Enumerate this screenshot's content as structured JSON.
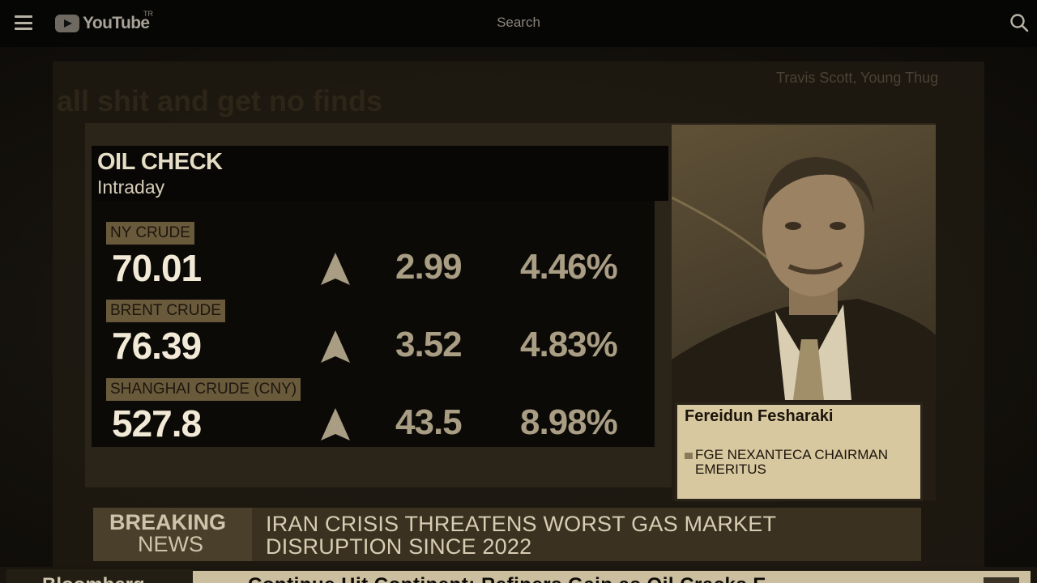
{
  "header": {
    "logo_text": "YouTube",
    "region": "TR",
    "search_label": "Search"
  },
  "background": {
    "song_artists": "Travis Scott, Young Thug",
    "lyric_text": "all shit and get no finds"
  },
  "oil_check": {
    "title": "OIL CHECK",
    "subtitle": "Intraday",
    "rows": [
      {
        "label": "NY CRUDE",
        "price": "70.01",
        "change": "2.99",
        "pct": "4.46%"
      },
      {
        "label": "BRENT CRUDE",
        "price": "76.39",
        "change": "3.52",
        "pct": "4.83%"
      },
      {
        "label": "SHANGHAI CRUDE (CNY)",
        "price": "527.8",
        "change": "43.5",
        "pct": "8.98%"
      }
    ]
  },
  "guest": {
    "name": "Fereidun Fesharaki",
    "title": "FGE NEXANTECA CHAIRMAN EMERITUS"
  },
  "breaking": {
    "label_line1": "BREAKING",
    "label_line2": "NEWS",
    "headline": "IRAN CRISIS THREATENS WORST GAS MARKET DISRUPTION SINCE 2022"
  },
  "ticker": {
    "left_text": "Bloomberg",
    "right_text": "Continue Hit Continent: Refiners Gain as Oil Cracks E"
  },
  "colors": {
    "sepia_dark": "#0b0a07",
    "label_bg": "#6a5a3c",
    "price_text": "#f2ead6"
  }
}
